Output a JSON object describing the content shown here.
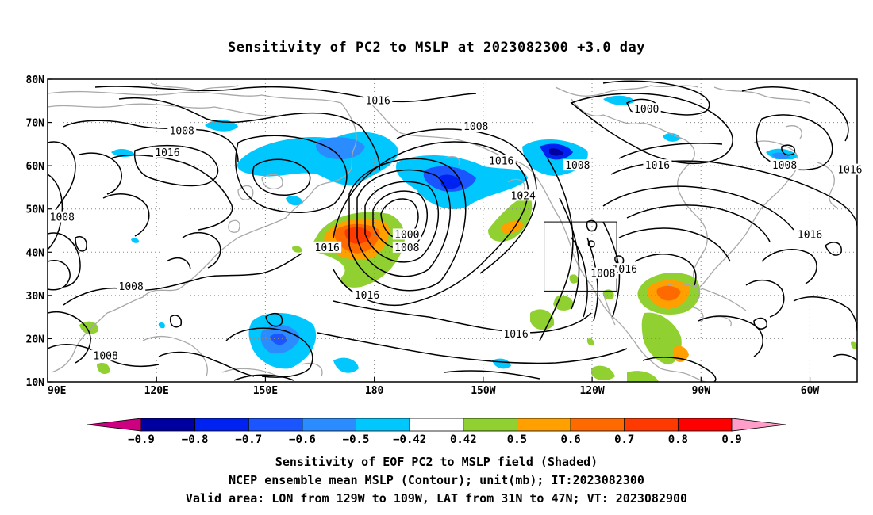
{
  "title": "Sensitivity of PC2 to MSLP at 2023082300 +3.0 day",
  "map": {
    "lat_ticks": [
      {
        "value": 80,
        "label": "80N"
      },
      {
        "value": 70,
        "label": "70N"
      },
      {
        "value": 60,
        "label": "60N"
      },
      {
        "value": 50,
        "label": "50N"
      },
      {
        "value": 40,
        "label": "40N"
      },
      {
        "value": 30,
        "label": "30N"
      },
      {
        "value": 20,
        "label": "20N"
      },
      {
        "value": 10,
        "label": "10N"
      }
    ],
    "lon_ticks": [
      {
        "value": 90,
        "label": "90E"
      },
      {
        "value": 120,
        "label": "120E"
      },
      {
        "value": 150,
        "label": "150E"
      },
      {
        "value": 180,
        "label": "180"
      },
      {
        "value": 210,
        "label": "150W"
      },
      {
        "value": 240,
        "label": "120W"
      },
      {
        "value": 270,
        "label": "90W"
      },
      {
        "value": 300,
        "label": "60W"
      }
    ],
    "lon_range": [
      90,
      313
    ],
    "lat_range": [
      10,
      80
    ],
    "grid": "dotted",
    "valid_area": {
      "lon": [
        231,
        251
      ],
      "lat": [
        31,
        47
      ]
    },
    "contour_labels": [
      {
        "text": "1016",
        "lon": 181,
        "lat": 75
      },
      {
        "text": "1008",
        "lon": 127,
        "lat": 68
      },
      {
        "text": "1016",
        "lon": 123,
        "lat": 63
      },
      {
        "text": "1008",
        "lon": 208,
        "lat": 69
      },
      {
        "text": "1000",
        "lon": 255,
        "lat": 73
      },
      {
        "text": "1016",
        "lon": 215,
        "lat": 61
      },
      {
        "text": "1008",
        "lon": 236,
        "lat": 60
      },
      {
        "text": "1016",
        "lon": 258,
        "lat": 60
      },
      {
        "text": "1008",
        "lon": 293,
        "lat": 60
      },
      {
        "text": "1016",
        "lon": 311,
        "lat": 59
      },
      {
        "text": "1024",
        "lon": 221,
        "lat": 53
      },
      {
        "text": "1008",
        "lon": 94,
        "lat": 48
      },
      {
        "text": "1016",
        "lon": 300,
        "lat": 44
      },
      {
        "text": "1000",
        "lon": 189,
        "lat": 44
      },
      {
        "text": "1008",
        "lon": 189,
        "lat": 41
      },
      {
        "text": "1016",
        "lon": 167,
        "lat": 41
      },
      {
        "text": "1016",
        "lon": 249,
        "lat": 36
      },
      {
        "text": "1008",
        "lon": 243,
        "lat": 35
      },
      {
        "text": "1008",
        "lon": 113,
        "lat": 32
      },
      {
        "text": "1016",
        "lon": 178,
        "lat": 30
      },
      {
        "text": "1016",
        "lon": 219,
        "lat": 21
      },
      {
        "text": "1008",
        "lon": 106,
        "lat": 16
      }
    ]
  },
  "colorbar": {
    "labels": [
      "−0.9",
      "−0.8",
      "−0.7",
      "−0.6",
      "−0.5",
      "−0.42",
      "0.42",
      "0.5",
      "0.6",
      "0.7",
      "0.8",
      "0.9"
    ],
    "colors": [
      "#0000a0",
      "#0022f0",
      "#1a55ff",
      "#2a8cff",
      "#00c8ff",
      "#ffffff",
      "#90d030",
      "#ffa000",
      "#ff6a00",
      "#ff3a00",
      "#ff0000"
    ],
    "low_arrow_color": "#cc0080",
    "high_arrow_color": "#ff9ec8"
  },
  "captions": [
    "Sensitivity of EOF PC2 to MSLP field (Shaded)",
    "NCEP ensemble mean MSLP (Contour); unit(mb); IT:2023082300",
    "Valid area: LON from 129W to 109W, LAT from 31N to 47N; VT: 2023082900"
  ],
  "chart_data": {
    "type": "heatmap",
    "title": "Sensitivity of PC2 to MSLP at 2023082300 +3.0 day",
    "field": "Sensitivity of EOF PC2 to MSLP field (Shaded)",
    "contour_field": "NCEP ensemble mean MSLP (Contour); unit(mb); IT:2023082300",
    "x_range": [
      90,
      313
    ],
    "y_range": [
      10,
      80
    ],
    "levels": [
      -0.9,
      -0.8,
      -0.7,
      -0.6,
      -0.5,
      -0.42,
      0.42,
      0.5,
      0.6,
      0.7,
      0.8,
      0.9
    ]
  }
}
